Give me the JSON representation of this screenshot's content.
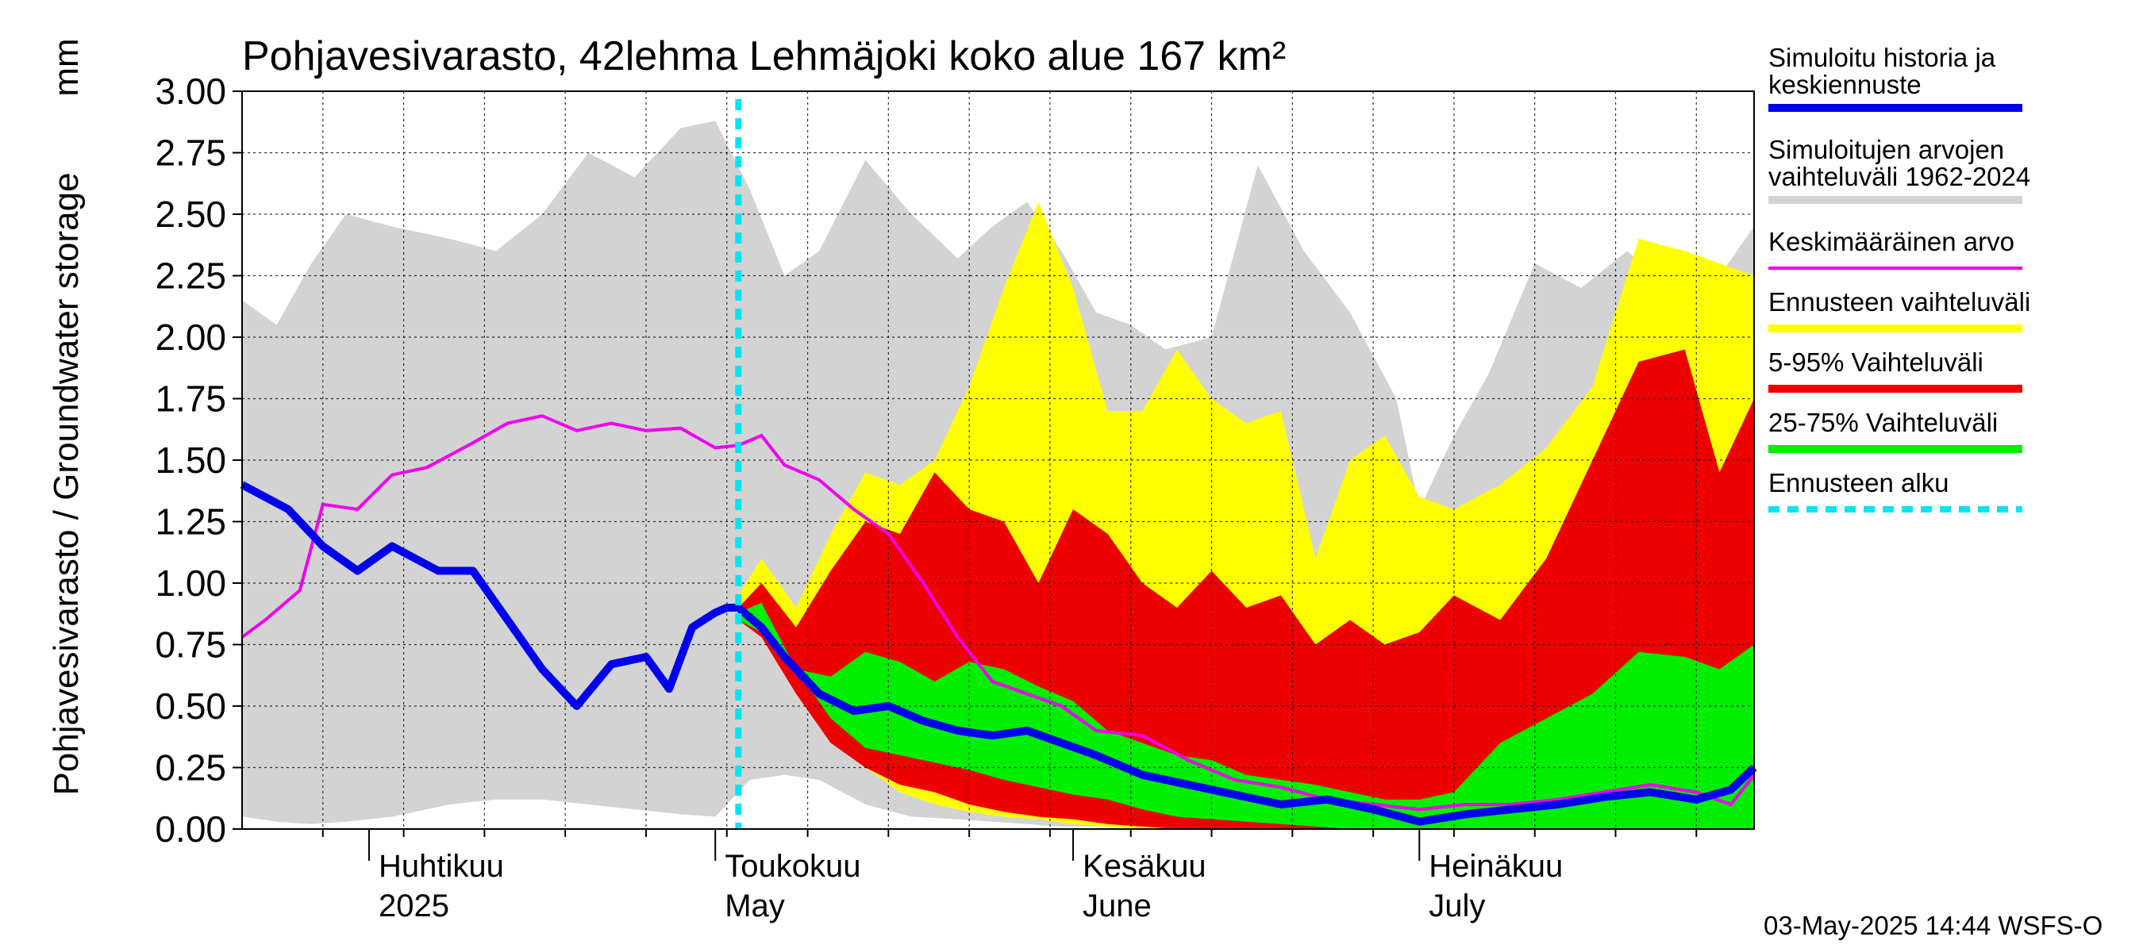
{
  "chart_data": {
    "type": "area",
    "title": "Pohjavesivarasto, 42lehma Lehmäjoki koko alue 167 km²",
    "ylabel": "Pohjavesivarasto / Groundwater storage",
    "yunit": "mm",
    "ylim": [
      0,
      3.0
    ],
    "yticks": [
      "0.00",
      "0.25",
      "0.50",
      "0.75",
      "1.00",
      "1.25",
      "1.50",
      "1.75",
      "2.00",
      "2.25",
      "2.50",
      "2.75",
      "3.00"
    ],
    "xlim": [
      "2025-03-21",
      "2025-07-30"
    ],
    "grid": true,
    "legend_position": "right",
    "forecast_start": "2025-05-03",
    "months": [
      {
        "fi": "Huhtikuu",
        "en": "2025",
        "date": "2025-04-01"
      },
      {
        "fi": "Toukokuu",
        "en": "May",
        "date": "2025-05-01"
      },
      {
        "fi": "Kesäkuu",
        "en": "June",
        "date": "2025-06-01"
      },
      {
        "fi": "Heinäkuu",
        "en": "July",
        "date": "2025-07-01"
      }
    ],
    "legend": [
      {
        "label": "Simuloitu historia ja keskiennuste",
        "color": "#0000ee",
        "style": "line"
      },
      {
        "label": "Simuloitujen arvojen vaihteluväli 1962-2024",
        "color": "#d3d3d3",
        "style": "line"
      },
      {
        "label": "Keskimääräinen arvo",
        "color": "#ee00ee",
        "style": "thin"
      },
      {
        "label": "Ennusteen vaihteluväli",
        "color": "#ffff00",
        "style": "line"
      },
      {
        "label": "5-95% Vaihteluväli",
        "color": "#ee0000",
        "style": "line"
      },
      {
        "label": "25-75% Vaihteluväli",
        "color": "#00ee00",
        "style": "line"
      },
      {
        "label": "Ennusteen alku",
        "color": "#00e5ee",
        "style": "dashed"
      }
    ],
    "series": {
      "hist_range": {
        "x": [
          "2025-03-21",
          "2025-03-24",
          "2025-03-27",
          "2025-03-30",
          "2025-04-03",
          "2025-04-08",
          "2025-04-12",
          "2025-04-16",
          "2025-04-20",
          "2025-04-24",
          "2025-04-28",
          "2025-05-01",
          "2025-05-04",
          "2025-05-07",
          "2025-05-10",
          "2025-05-14",
          "2025-05-18",
          "2025-05-22",
          "2025-05-25",
          "2025-05-28",
          "2025-05-31",
          "2025-06-03",
          "2025-06-06",
          "2025-06-09",
          "2025-06-13",
          "2025-06-17",
          "2025-06-21",
          "2025-06-25",
          "2025-06-29",
          "2025-07-01",
          "2025-07-04",
          "2025-07-07",
          "2025-07-11",
          "2025-07-15",
          "2025-07-19",
          "2025-07-23",
          "2025-07-27",
          "2025-07-30"
        ],
        "upper": [
          2.15,
          2.05,
          2.3,
          2.5,
          2.45,
          2.4,
          2.35,
          2.5,
          2.75,
          2.65,
          2.85,
          2.88,
          2.6,
          2.25,
          2.35,
          2.72,
          2.5,
          2.32,
          2.45,
          2.55,
          2.35,
          2.1,
          2.05,
          1.95,
          2.0,
          2.7,
          2.35,
          2.1,
          1.75,
          1.3,
          1.6,
          1.85,
          2.3,
          2.2,
          2.35,
          2.2,
          2.25,
          2.45
        ],
        "lower": [
          0.05,
          0.03,
          0.02,
          0.03,
          0.05,
          0.1,
          0.12,
          0.12,
          0.1,
          0.08,
          0.06,
          0.05,
          0.2,
          0.22,
          0.2,
          0.1,
          0.05,
          0.04,
          0.03,
          0.02,
          0.01,
          0.01,
          0.01,
          0.0,
          0.0,
          0.0,
          0.0,
          0.0,
          0.0,
          0.0,
          0.0,
          0.0,
          0.0,
          0.0,
          0.0,
          0.0,
          0.0,
          0.0
        ]
      },
      "forecast_range": {
        "x": [
          "2025-05-03",
          "2025-05-05",
          "2025-05-08",
          "2025-05-11",
          "2025-05-14",
          "2025-05-17",
          "2025-05-20",
          "2025-05-23",
          "2025-05-26",
          "2025-05-29",
          "2025-06-01",
          "2025-06-04",
          "2025-06-07",
          "2025-06-10",
          "2025-06-13",
          "2025-06-16",
          "2025-06-19",
          "2025-06-22",
          "2025-06-25",
          "2025-06-28",
          "2025-07-01",
          "2025-07-04",
          "2025-07-08",
          "2025-07-12",
          "2025-07-16",
          "2025-07-20",
          "2025-07-24",
          "2025-07-27",
          "2025-07-30"
        ],
        "upper": [
          0.95,
          1.1,
          0.9,
          1.2,
          1.45,
          1.4,
          1.5,
          1.8,
          2.2,
          2.55,
          2.2,
          1.7,
          1.7,
          1.95,
          1.75,
          1.65,
          1.7,
          1.1,
          1.5,
          1.6,
          1.35,
          1.3,
          1.4,
          1.55,
          1.8,
          2.4,
          2.35,
          2.3,
          2.25
        ],
        "lower": [
          0.85,
          0.8,
          0.6,
          0.4,
          0.25,
          0.15,
          0.1,
          0.07,
          0.05,
          0.04,
          0.02,
          0.01,
          0.0,
          0.0,
          0.0,
          0.0,
          0.0,
          0.0,
          0.0,
          0.0,
          0.0,
          0.0,
          0.0,
          0.0,
          0.0,
          0.0,
          0.0,
          0.0,
          0.0
        ]
      },
      "p5_95": {
        "x": [
          "2025-05-03",
          "2025-05-05",
          "2025-05-08",
          "2025-05-11",
          "2025-05-14",
          "2025-05-17",
          "2025-05-20",
          "2025-05-23",
          "2025-05-26",
          "2025-05-29",
          "2025-06-01",
          "2025-06-04",
          "2025-06-07",
          "2025-06-10",
          "2025-06-13",
          "2025-06-16",
          "2025-06-19",
          "2025-06-22",
          "2025-06-25",
          "2025-06-28",
          "2025-07-01",
          "2025-07-04",
          "2025-07-08",
          "2025-07-12",
          "2025-07-16",
          "2025-07-20",
          "2025-07-24",
          "2025-07-27",
          "2025-07-30"
        ],
        "upper": [
          0.9,
          1.0,
          0.82,
          1.05,
          1.25,
          1.2,
          1.45,
          1.3,
          1.25,
          1.0,
          1.3,
          1.2,
          1.0,
          0.9,
          1.05,
          0.9,
          0.95,
          0.75,
          0.85,
          0.75,
          0.8,
          0.95,
          0.85,
          1.1,
          1.5,
          1.9,
          1.95,
          1.45,
          1.75
        ],
        "lower": [
          0.85,
          0.78,
          0.55,
          0.35,
          0.25,
          0.18,
          0.15,
          0.1,
          0.07,
          0.05,
          0.04,
          0.02,
          0.01,
          0.0,
          0.0,
          0.0,
          0.0,
          0.0,
          0.0,
          0.0,
          0.0,
          0.0,
          0.0,
          0.0,
          0.0,
          0.0,
          0.0,
          0.0,
          0.0
        ]
      },
      "p25_75": {
        "x": [
          "2025-05-03",
          "2025-05-05",
          "2025-05-08",
          "2025-05-11",
          "2025-05-14",
          "2025-05-17",
          "2025-05-20",
          "2025-05-23",
          "2025-05-26",
          "2025-05-29",
          "2025-06-01",
          "2025-06-04",
          "2025-06-07",
          "2025-06-10",
          "2025-06-13",
          "2025-06-16",
          "2025-06-19",
          "2025-06-22",
          "2025-06-25",
          "2025-06-28",
          "2025-07-01",
          "2025-07-04",
          "2025-07-08",
          "2025-07-12",
          "2025-07-16",
          "2025-07-20",
          "2025-07-24",
          "2025-07-27",
          "2025-07-30"
        ],
        "upper": [
          0.88,
          0.92,
          0.65,
          0.62,
          0.72,
          0.68,
          0.6,
          0.68,
          0.65,
          0.58,
          0.52,
          0.4,
          0.35,
          0.3,
          0.28,
          0.22,
          0.2,
          0.18,
          0.15,
          0.12,
          0.12,
          0.15,
          0.35,
          0.45,
          0.55,
          0.72,
          0.7,
          0.65,
          0.75
        ],
        "lower": [
          0.85,
          0.8,
          0.65,
          0.45,
          0.33,
          0.3,
          0.27,
          0.24,
          0.2,
          0.17,
          0.14,
          0.12,
          0.08,
          0.05,
          0.04,
          0.03,
          0.02,
          0.01,
          0.0,
          0.0,
          0.0,
          0.0,
          0.0,
          0.0,
          0.0,
          0.0,
          0.0,
          0.0,
          0.0
        ]
      },
      "mean": {
        "x": [
          "2025-03-21",
          "2025-03-23",
          "2025-03-26",
          "2025-03-28",
          "2025-03-31",
          "2025-04-03",
          "2025-04-06",
          "2025-04-10",
          "2025-04-13",
          "2025-04-16",
          "2025-04-19",
          "2025-04-22",
          "2025-04-25",
          "2025-04-28",
          "2025-05-01",
          "2025-05-03",
          "2025-05-05",
          "2025-05-07",
          "2025-05-10",
          "2025-05-13",
          "2025-05-16",
          "2025-05-19",
          "2025-05-22",
          "2025-05-25",
          "2025-05-28",
          "2025-05-31",
          "2025-06-03",
          "2025-06-07",
          "2025-06-11",
          "2025-06-15",
          "2025-06-19",
          "2025-06-23",
          "2025-06-27",
          "2025-07-01",
          "2025-07-05",
          "2025-07-09",
          "2025-07-13",
          "2025-07-17",
          "2025-07-21",
          "2025-07-25",
          "2025-07-28",
          "2025-07-30"
        ],
        "y": [
          0.78,
          0.85,
          0.97,
          1.32,
          1.3,
          1.44,
          1.47,
          1.57,
          1.65,
          1.68,
          1.62,
          1.65,
          1.62,
          1.63,
          1.55,
          1.56,
          1.6,
          1.48,
          1.42,
          1.3,
          1.2,
          1.0,
          0.78,
          0.6,
          0.55,
          0.5,
          0.4,
          0.38,
          0.28,
          0.2,
          0.17,
          0.12,
          0.1,
          0.08,
          0.1,
          0.1,
          0.12,
          0.15,
          0.18,
          0.15,
          0.1,
          0.22
        ]
      },
      "simulated": {
        "x": [
          "2025-03-21",
          "2025-03-25",
          "2025-03-28",
          "2025-03-31",
          "2025-04-03",
          "2025-04-05",
          "2025-04-07",
          "2025-04-10",
          "2025-04-13",
          "2025-04-16",
          "2025-04-19",
          "2025-04-22",
          "2025-04-25",
          "2025-04-27",
          "2025-04-29",
          "2025-05-01",
          "2025-05-02",
          "2025-05-03",
          "2025-05-05",
          "2025-05-07",
          "2025-05-10",
          "2025-05-13",
          "2025-05-16",
          "2025-05-19",
          "2025-05-22",
          "2025-05-25",
          "2025-05-28",
          "2025-05-31",
          "2025-06-03",
          "2025-06-07",
          "2025-06-11",
          "2025-06-15",
          "2025-06-19",
          "2025-06-23",
          "2025-06-27",
          "2025-07-01",
          "2025-07-05",
          "2025-07-09",
          "2025-07-13",
          "2025-07-17",
          "2025-07-21",
          "2025-07-25",
          "2025-07-28",
          "2025-07-30"
        ],
        "y": [
          1.4,
          1.3,
          1.15,
          1.05,
          1.15,
          1.1,
          1.05,
          1.05,
          0.85,
          0.65,
          0.5,
          0.67,
          0.7,
          0.57,
          0.82,
          0.88,
          0.9,
          0.9,
          0.82,
          0.7,
          0.55,
          0.48,
          0.5,
          0.44,
          0.4,
          0.38,
          0.4,
          0.35,
          0.3,
          0.22,
          0.18,
          0.14,
          0.1,
          0.12,
          0.08,
          0.03,
          0.06,
          0.08,
          0.1,
          0.13,
          0.15,
          0.12,
          0.16,
          0.25
        ]
      }
    },
    "footer": "03-May-2025 14:44 WSFS-O"
  }
}
